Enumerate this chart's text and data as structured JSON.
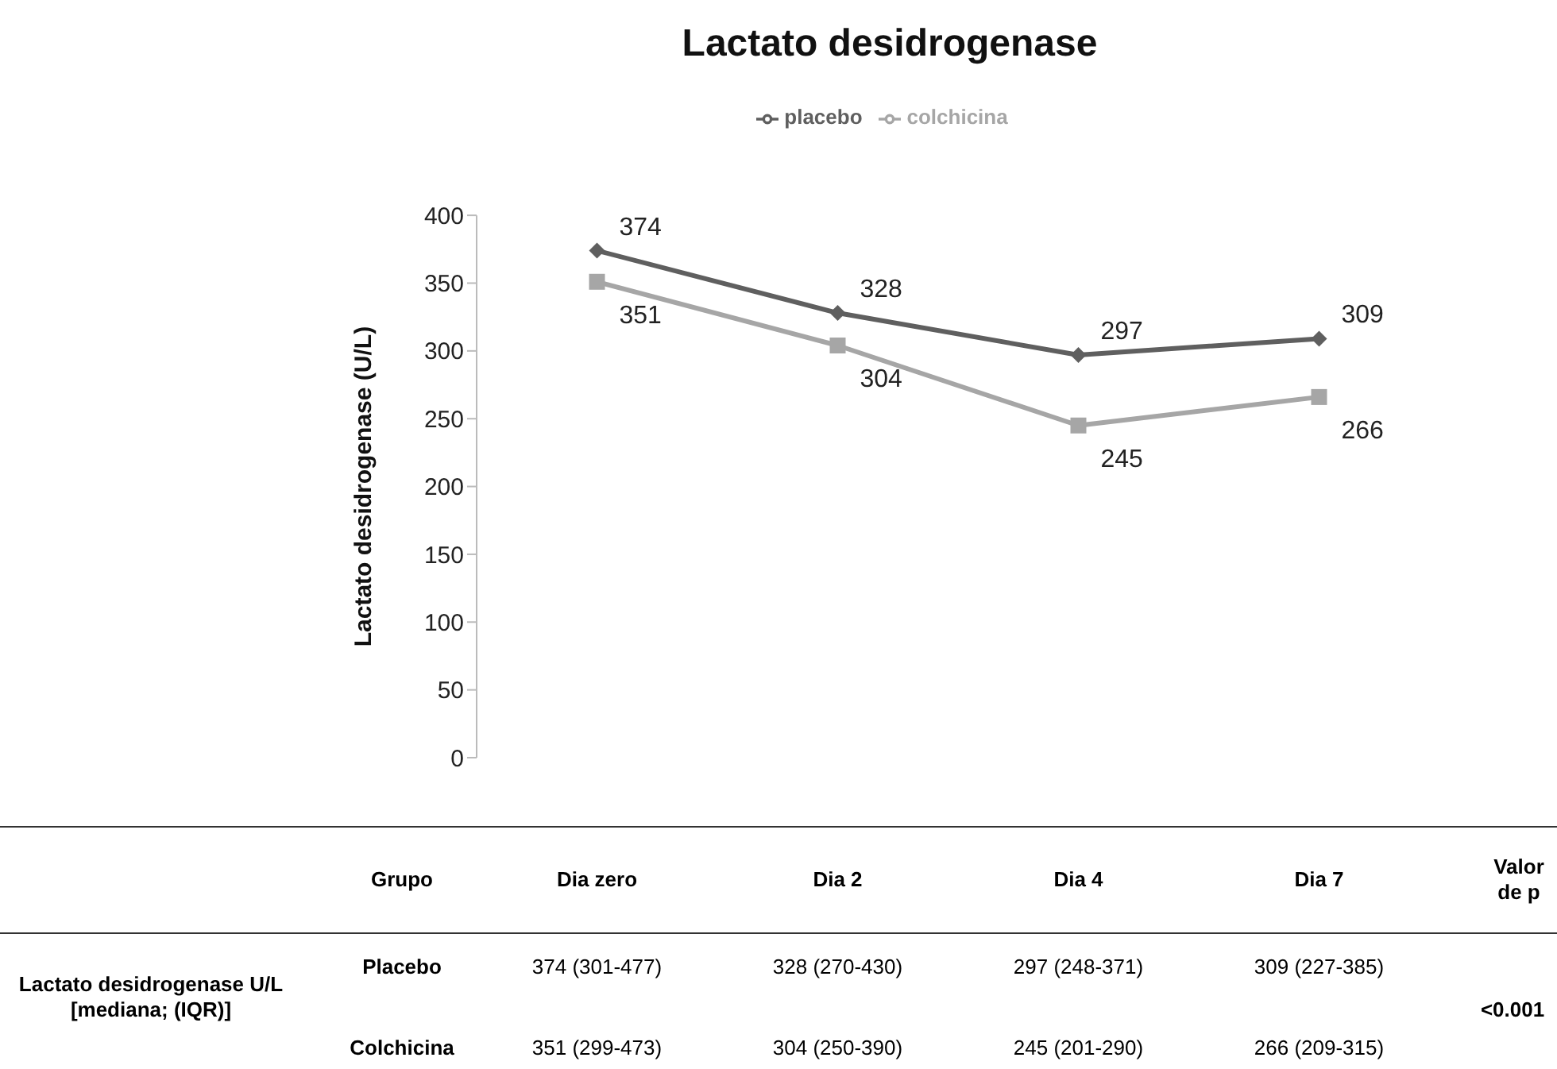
{
  "chart_data": {
    "type": "line",
    "title": "Lactato desidrogenase",
    "ylabel": "Lactato desidrogenase (U/L)",
    "categories": [
      "Dia zero",
      "Dia 2",
      "Dia 4",
      "Dia 7"
    ],
    "series": [
      {
        "name": "placebo",
        "color": "#5f5f5f",
        "marker": "diamond",
        "values": [
          374,
          328,
          297,
          309
        ]
      },
      {
        "name": "colchicina",
        "color": "#a6a6a6",
        "marker": "square",
        "values": [
          351,
          304,
          245,
          266
        ]
      }
    ],
    "ylim": [
      0,
      400
    ],
    "yticks": [
      0,
      50,
      100,
      150,
      200,
      250,
      300,
      350,
      400
    ],
    "grid": false,
    "legend": "top",
    "data_labels": true,
    "annotations": [
      "Lactato desidrogenase U/L [mediana; (IQR)]",
      "Grupo",
      "Valor de p",
      "Placebo",
      "374 (301-477)",
      "328 (270-430)",
      "297 (248-371)",
      "309 (227-385)",
      "Colchicina",
      "351 (299-473)",
      "304 (250-390)",
      "245 (201-290)",
      "266 (209-315)",
      "<0.001"
    ]
  }
}
